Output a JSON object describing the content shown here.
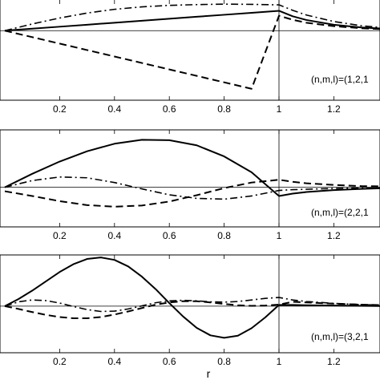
{
  "chart_data": [
    {
      "type": "line",
      "label": "(n,m,l)=(1,2,1",
      "x": [
        0,
        0.1,
        0.2,
        0.3,
        0.4,
        0.5,
        0.6,
        0.7,
        0.8,
        0.9,
        1.0,
        1.05,
        1.1,
        1.2,
        1.3,
        1.4
      ],
      "series": [
        {
          "style": "solid",
          "values": [
            0.0,
            0.08,
            0.16,
            0.24,
            0.32,
            0.4,
            0.48,
            0.56,
            0.64,
            0.72,
            0.8,
            0.58,
            0.43,
            0.24,
            0.13,
            0.07
          ]
        },
        {
          "style": "dashed",
          "values": [
            0.0,
            -0.26,
            -0.52,
            -0.78,
            -1.04,
            -1.3,
            -1.56,
            -1.82,
            -2.08,
            -2.34,
            0.6,
            0.44,
            0.32,
            0.18,
            0.1,
            0.05
          ]
        },
        {
          "style": "dash-dot",
          "values": [
            0.0,
            0.27,
            0.51,
            0.71,
            0.86,
            0.96,
            1.02,
            1.05,
            1.07,
            1.06,
            1.04,
            0.82,
            0.63,
            0.37,
            0.2,
            0.1
          ]
        }
      ],
      "ylim": [
        -2.8,
        1.3
      ]
    },
    {
      "type": "line",
      "label": "(n,m,l)=(2,2,1",
      "x": [
        0,
        0.1,
        0.2,
        0.3,
        0.4,
        0.5,
        0.6,
        0.7,
        0.8,
        0.9,
        1.0,
        1.05,
        1.1,
        1.2,
        1.3,
        1.4
      ],
      "series": [
        {
          "style": "solid",
          "values": [
            0.0,
            0.34,
            0.65,
            0.91,
            1.1,
            1.2,
            1.19,
            1.06,
            0.78,
            0.38,
            -0.22,
            -0.16,
            -0.12,
            -0.07,
            -0.04,
            -0.02
          ]
        },
        {
          "style": "dashed",
          "values": [
            -0.1,
            -0.22,
            -0.35,
            -0.45,
            -0.49,
            -0.46,
            -0.36,
            -0.2,
            -0.02,
            0.12,
            0.19,
            0.14,
            0.1,
            0.06,
            0.03,
            0.02
          ]
        },
        {
          "style": "dash-dot",
          "values": [
            0.0,
            0.17,
            0.26,
            0.24,
            0.12,
            -0.04,
            -0.19,
            -0.28,
            -0.3,
            -0.22,
            -0.08,
            -0.06,
            -0.05,
            -0.03,
            -0.02,
            -0.01
          ]
        }
      ],
      "ylim": [
        -1.0,
        1.45
      ]
    },
    {
      "type": "line",
      "label": "(n,m,l)=(3,2,1",
      "x": [
        0,
        0.05,
        0.1,
        0.15,
        0.2,
        0.25,
        0.3,
        0.35,
        0.4,
        0.45,
        0.5,
        0.55,
        0.6,
        0.65,
        0.7,
        0.75,
        0.8,
        0.85,
        0.9,
        0.95,
        1.0,
        1.05,
        1.1,
        1.2,
        1.3,
        1.4
      ],
      "series": [
        {
          "style": "solid",
          "values": [
            0.0,
            0.23,
            0.5,
            0.8,
            1.1,
            1.35,
            1.52,
            1.57,
            1.49,
            1.28,
            0.95,
            0.55,
            0.1,
            -0.33,
            -0.7,
            -0.94,
            -1.02,
            -0.95,
            -0.71,
            -0.36,
            0.04,
            0.04,
            0.03,
            0.02,
            0.01,
            0.0
          ]
        },
        {
          "style": "dashed",
          "values": [
            0.0,
            -0.09,
            -0.19,
            -0.28,
            -0.35,
            -0.39,
            -0.39,
            -0.35,
            -0.27,
            -0.17,
            -0.06,
            0.05,
            0.12,
            0.16,
            0.16,
            0.12,
            0.07,
            0.03,
            0.01,
            0.02,
            0.05,
            0.14,
            0.12,
            0.08,
            0.05,
            0.03
          ]
        },
        {
          "style": "dash-dot",
          "values": [
            0.0,
            0.14,
            0.2,
            0.18,
            0.1,
            -0.01,
            -0.11,
            -0.17,
            -0.16,
            -0.09,
            0.01,
            0.11,
            0.17,
            0.19,
            0.17,
            0.14,
            0.13,
            0.15,
            0.2,
            0.25,
            0.28,
            0.2,
            0.15,
            0.09,
            0.05,
            0.03
          ]
        }
      ],
      "ylim": [
        -1.5,
        1.65
      ]
    }
  ],
  "x_ticks": [
    "0.2",
    "0.4",
    "0.6",
    "0.8",
    "1",
    "1.2"
  ],
  "x_tick_values": [
    0.2,
    0.4,
    0.6,
    0.8,
    1.0,
    1.2
  ],
  "xlim": [
    0,
    1.4
  ],
  "xlabel": "r",
  "line_color": "#000000"
}
